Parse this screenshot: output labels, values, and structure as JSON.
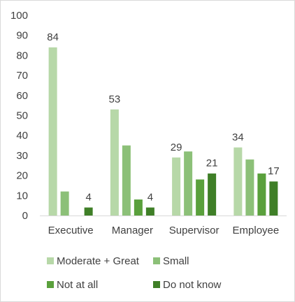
{
  "chart_data": {
    "type": "bar",
    "categories": [
      "Executive",
      "Manager",
      "Supervisor",
      "Employee"
    ],
    "series": [
      {
        "name": "Moderate + Great",
        "color": "#b7d8a8",
        "values": [
          84,
          53,
          29,
          34
        ]
      },
      {
        "name": "Small",
        "color": "#8cc078",
        "values": [
          12,
          35,
          32,
          28
        ]
      },
      {
        "name": "Not at all",
        "color": "#5aa03c",
        "values": [
          0,
          8,
          18,
          21
        ]
      },
      {
        "name": "Do not know",
        "color": "#3f7f27",
        "values": [
          4,
          4,
          21,
          17
        ]
      }
    ],
    "data_labels": [
      {
        "series": 0,
        "category": 0,
        "text": "84"
      },
      {
        "series": 3,
        "category": 0,
        "text": "4"
      },
      {
        "series": 0,
        "category": 1,
        "text": "53"
      },
      {
        "series": 3,
        "category": 1,
        "text": "4"
      },
      {
        "series": 0,
        "category": 2,
        "text": "29"
      },
      {
        "series": 3,
        "category": 2,
        "text": "21"
      },
      {
        "series": 0,
        "category": 3,
        "text": "34"
      },
      {
        "series": 3,
        "category": 3,
        "text": "17"
      }
    ],
    "ylim": [
      0,
      100
    ],
    "yticks": [
      0,
      10,
      20,
      30,
      40,
      50,
      60,
      70,
      80,
      90,
      100
    ],
    "grid": false,
    "legend_position": "bottom",
    "title": "",
    "xlabel": "",
    "ylabel": ""
  }
}
